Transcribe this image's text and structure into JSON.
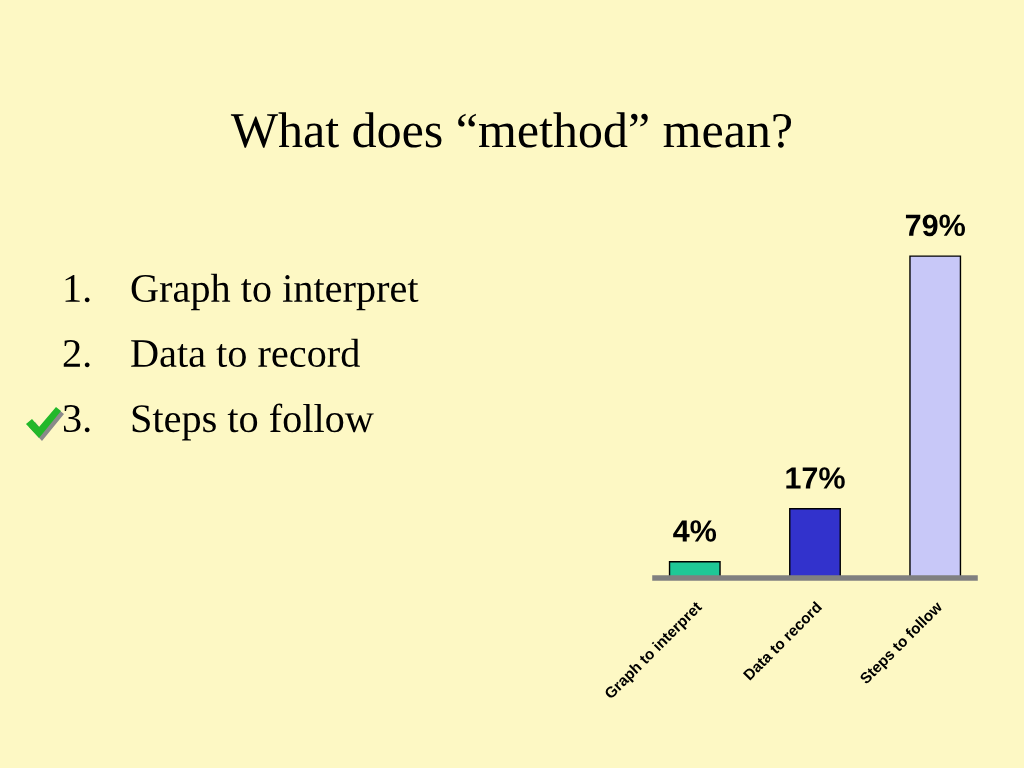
{
  "chart_data": {
    "type": "bar",
    "title": "What does “method” mean?",
    "categories": [
      "Graph to interpret",
      "Data to record",
      "Steps to follow"
    ],
    "values": [
      4,
      17,
      79
    ],
    "colors": [
      "#1fc896",
      "#3232cc",
      "#c8c8f8"
    ],
    "value_labels": [
      "4%",
      "17%",
      "79%"
    ],
    "annotations": [
      "1. Graph to interpret",
      "2. Data to record",
      "3. Steps to follow"
    ]
  }
}
